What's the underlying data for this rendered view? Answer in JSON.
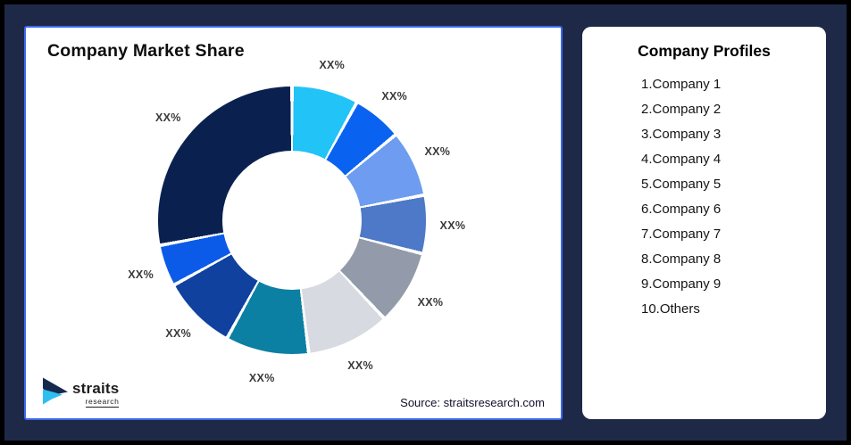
{
  "page": {
    "background_color": "#1E2947",
    "frame_color": "#000000"
  },
  "chart_card": {
    "title": "Company Market Share",
    "source": "Source: straitsresearch.com",
    "border_color": "#3C6AF0"
  },
  "logo": {
    "brand": "straits",
    "sub": "research",
    "mark_navy": "#16294F",
    "mark_cyan": "#2EBFF0"
  },
  "profiles_card": {
    "title": "Company Profiles",
    "items": [
      "1.Company 1",
      "2.Company 2",
      "3.Company 3",
      "4.Company 4",
      "5.Company 5",
      "6.Company 6",
      "7.Company 7",
      "8.Company 8",
      "9.Company 9",
      "10.Others"
    ]
  },
  "chart_data": {
    "type": "pie",
    "donut": true,
    "title": "Company Market Share",
    "start_angle_deg": 0,
    "clockwise": true,
    "legend": "none",
    "note": "All slice labels display placeholder text XX%; values below are estimated from slice angles",
    "segments": [
      {
        "name": "Company 1",
        "display_label": "XX%",
        "value": 8,
        "color": "#22C3F7"
      },
      {
        "name": "Company 2",
        "display_label": "XX%",
        "value": 6,
        "color": "#0A63F0"
      },
      {
        "name": "Company 3",
        "display_label": "XX%",
        "value": 8,
        "color": "#6D9CF0"
      },
      {
        "name": "Company 4",
        "display_label": "XX%",
        "value": 7,
        "color": "#4D79C8"
      },
      {
        "name": "Company 5",
        "display_label": "XX%",
        "value": 9,
        "color": "#939BAA"
      },
      {
        "name": "Company 6",
        "display_label": "XX%",
        "value": 10,
        "color": "#D7DBE1"
      },
      {
        "name": "Company 7",
        "display_label": "XX%",
        "value": 10,
        "color": "#0B80A3"
      },
      {
        "name": "Company 8",
        "display_label": "XX%",
        "value": 9,
        "color": "#10419E"
      },
      {
        "name": "Company 9",
        "display_label": "XX%",
        "value": 5,
        "color": "#0B5BE8"
      },
      {
        "name": "Others",
        "display_label": "XX%",
        "value": 28,
        "color": "#0A2150"
      }
    ]
  }
}
